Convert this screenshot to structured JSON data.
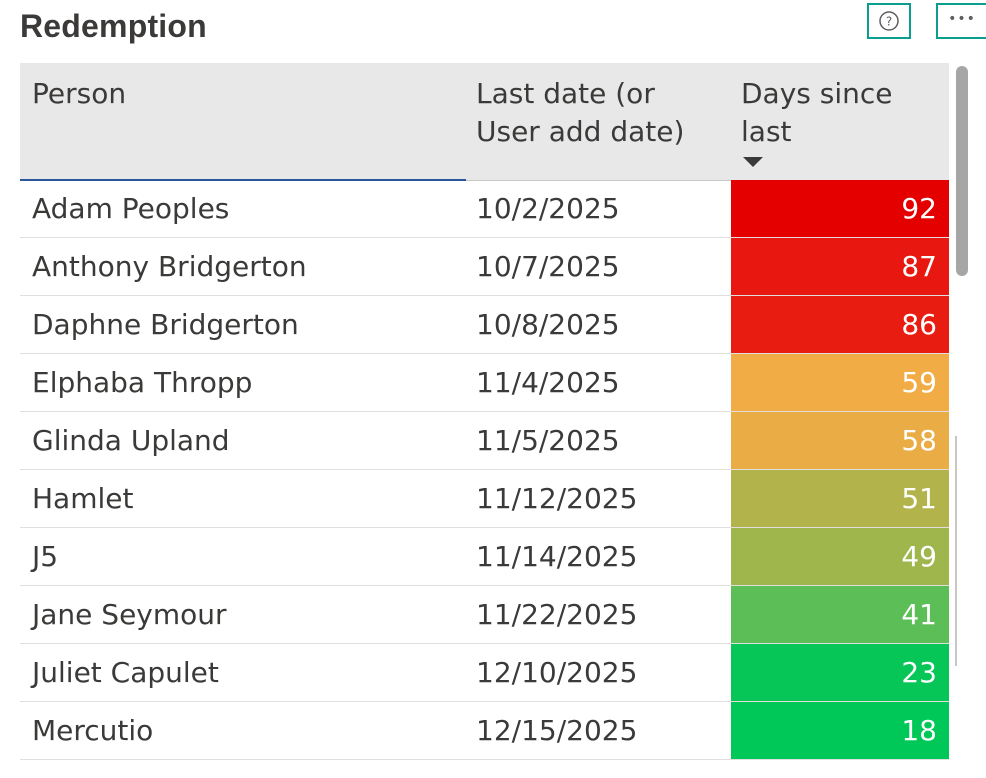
{
  "title": "Redemption",
  "header_icons": {
    "help": "help-circle-icon",
    "more": "more-options-icon",
    "more_glyph": "•••",
    "help_glyph": "?"
  },
  "table": {
    "columns": {
      "person": "Person",
      "last_date": "Last date (or User add date)",
      "days": "Days since last"
    },
    "sort": {
      "column": "days",
      "direction": "descending"
    },
    "rows": [
      {
        "person": "Adam Peoples",
        "last_date": "10/2/2025",
        "days": "92",
        "color": "#e50000"
      },
      {
        "person": "Anthony Bridgerton",
        "last_date": "10/7/2025",
        "days": "87",
        "color": "#e8170f"
      },
      {
        "person": "Daphne Bridgerton",
        "last_date": "10/8/2025",
        "days": "86",
        "color": "#e81c11"
      },
      {
        "person": "Elphaba Thropp",
        "last_date": "11/4/2025",
        "days": "59",
        "color": "#f2ac45"
      },
      {
        "person": "Glinda Upland",
        "last_date": "11/5/2025",
        "days": "58",
        "color": "#eaad46"
      },
      {
        "person": "Hamlet",
        "last_date": "11/12/2025",
        "days": "51",
        "color": "#b3b34b"
      },
      {
        "person": "J5",
        "last_date": "11/14/2025",
        "days": "49",
        "color": "#9fb64d"
      },
      {
        "person": "Jane Seymour",
        "last_date": "11/22/2025",
        "days": "41",
        "color": "#5cbe56"
      },
      {
        "person": "Juliet Capulet",
        "last_date": "12/10/2025",
        "days": "23",
        "color": "#06c657"
      },
      {
        "person": "Mercutio",
        "last_date": "12/15/2025",
        "days": "18",
        "color": "#00c858"
      }
    ]
  }
}
